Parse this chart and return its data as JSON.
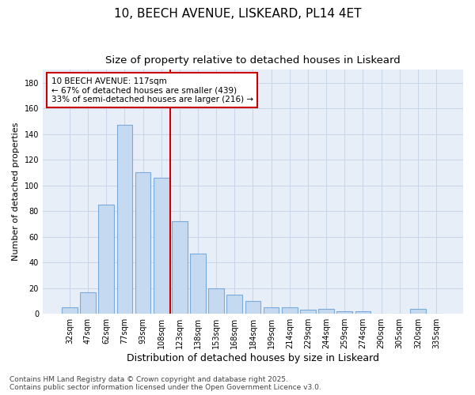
{
  "title": "10, BEECH AVENUE, LISKEARD, PL14 4ET",
  "subtitle": "Size of property relative to detached houses in Liskeard",
  "xlabel": "Distribution of detached houses by size in Liskeard",
  "ylabel": "Number of detached properties",
  "categories": [
    "32sqm",
    "47sqm",
    "62sqm",
    "77sqm",
    "93sqm",
    "108sqm",
    "123sqm",
    "138sqm",
    "153sqm",
    "168sqm",
    "184sqm",
    "199sqm",
    "214sqm",
    "229sqm",
    "244sqm",
    "259sqm",
    "274sqm",
    "290sqm",
    "305sqm",
    "320sqm",
    "335sqm"
  ],
  "values": [
    5,
    17,
    85,
    147,
    110,
    106,
    72,
    47,
    20,
    15,
    10,
    5,
    5,
    3,
    4,
    2,
    2,
    0,
    0,
    4,
    0
  ],
  "bar_color": "#c5d9f0",
  "bar_edge_color": "#7aabdb",
  "plot_bg_color": "#e8eef8",
  "fig_bg_color": "#ffffff",
  "grid_color": "#c8d4e8",
  "vline_x": 6.0,
  "vline_color": "#cc0000",
  "annotation_text": "10 BEECH AVENUE: 117sqm\n← 67% of detached houses are smaller (439)\n33% of semi-detached houses are larger (216) →",
  "annotation_box_color": "#cc0000",
  "annotation_bg": "#ffffff",
  "footer": "Contains HM Land Registry data © Crown copyright and database right 2025.\nContains public sector information licensed under the Open Government Licence v3.0.",
  "ylim": [
    0,
    190
  ],
  "yticks": [
    0,
    20,
    40,
    60,
    80,
    100,
    120,
    140,
    160,
    180
  ],
  "title_fontsize": 11,
  "subtitle_fontsize": 9.5,
  "xlabel_fontsize": 9,
  "ylabel_fontsize": 8,
  "tick_fontsize": 7,
  "annot_fontsize": 7.5,
  "footer_fontsize": 6.5
}
